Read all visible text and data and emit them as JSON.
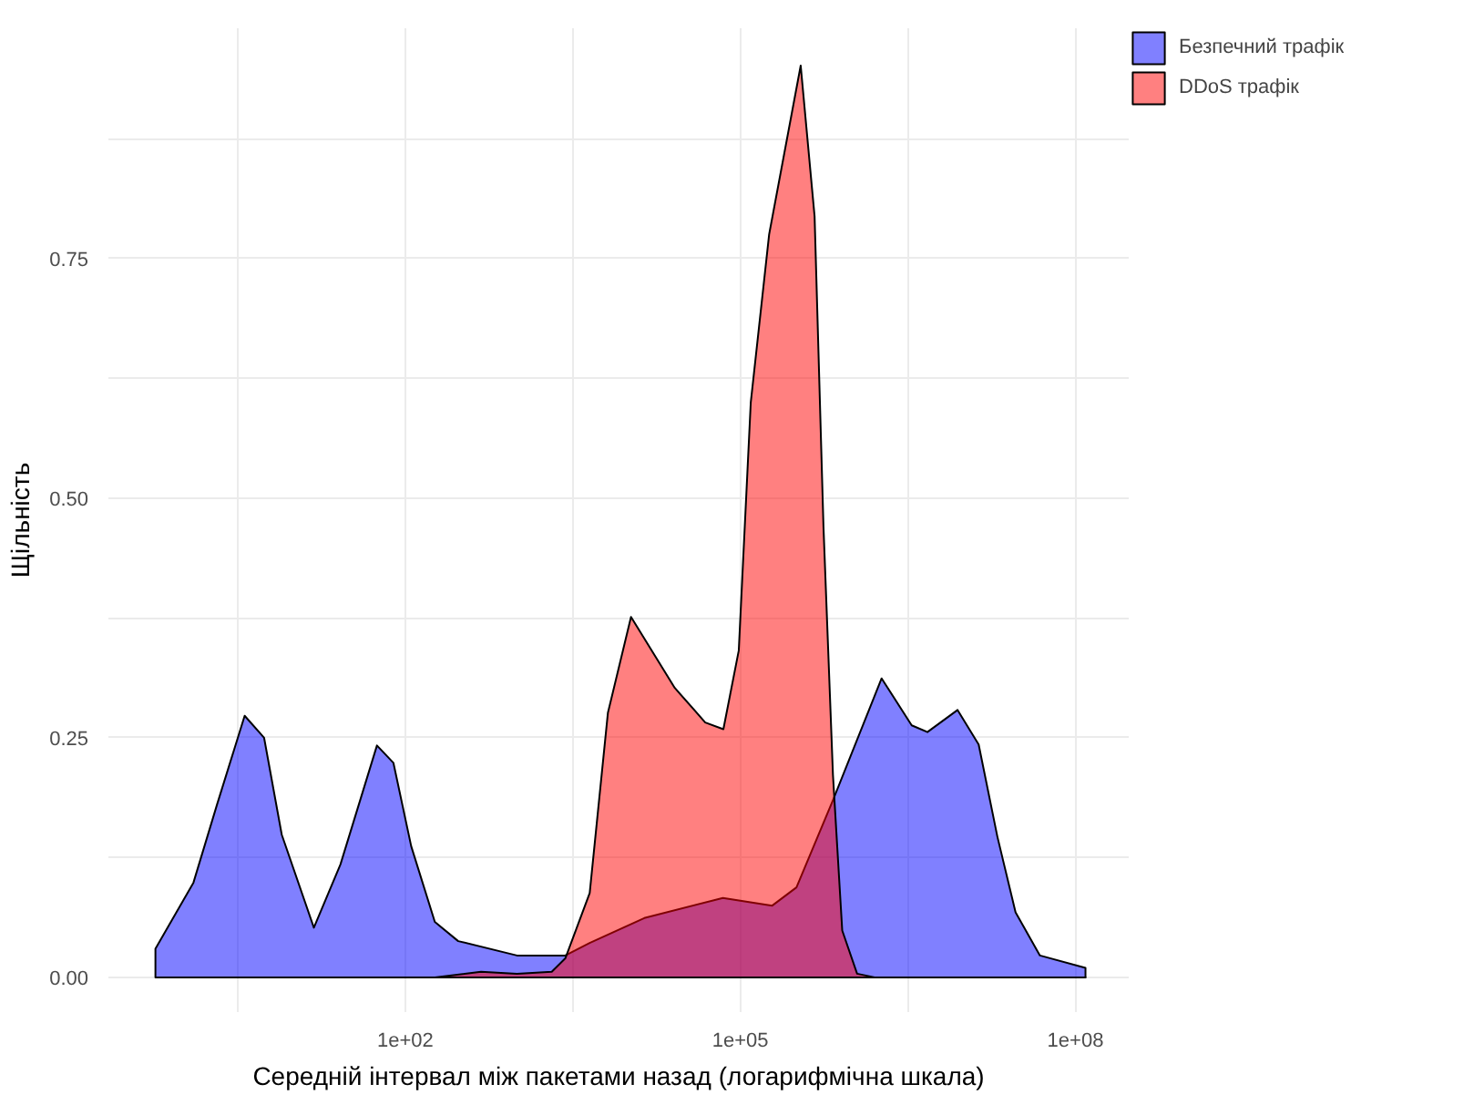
{
  "chart_data": {
    "type": "area",
    "xlabel": "Середній інтервал між пакетами назад (логарифмічна шкала)",
    "ylabel": "Щільність",
    "log": "x",
    "grid": true,
    "legend": "right",
    "line_style": "solid",
    "xlim": [
      0.22,
      300000000.0
    ],
    "ylim": [
      -0.036,
      0.99
    ],
    "xticks": [
      {
        "value": 3.16,
        "label": null
      },
      {
        "value": 100,
        "label": "1e+02"
      },
      {
        "value": 3160,
        "label": null
      },
      {
        "value": 100000,
        "label": "1e+05"
      },
      {
        "value": 3160000,
        "label": null
      },
      {
        "value": 100000000,
        "label": "1e+08"
      }
    ],
    "yticks": [
      {
        "value": 0,
        "label": "0.00"
      },
      {
        "value": 0.125,
        "label": null
      },
      0.25,
      {
        "value": 0.375,
        "label": null
      },
      {
        "value": 0.5,
        "label": "0.50"
      },
      {
        "value": 0.625,
        "label": null
      },
      0.75,
      {
        "value": 0.875,
        "label": null
      }
    ],
    "series": [
      {
        "name": "Безпечний трафік",
        "color": "#8080ff",
        "x": [
          0.58,
          1.27,
          2.06,
          3.65,
          5.45,
          7.84,
          15.2,
          26.3,
          55.8,
          78.3,
          113,
          184,
          298,
          1000,
          2710,
          4480,
          13800,
          69800,
          193000,
          318000,
          675000,
          1840000,
          3420000,
          4730000,
          8810000,
          13600000,
          20000000,
          29100000,
          48100000,
          123000000
        ],
        "values": [
          0.03,
          0.099,
          0.18,
          0.273,
          0.25,
          0.149,
          0.052,
          0.118,
          0.242,
          0.224,
          0.137,
          0.058,
          0.038,
          0.023,
          0.023,
          0.036,
          0.062,
          0.083,
          0.075,
          0.094,
          0.185,
          0.312,
          0.263,
          0.256,
          0.279,
          0.243,
          0.147,
          0.068,
          0.023,
          0.01
        ]
      },
      {
        "name": "DDoS трафік",
        "color": "#ff8080",
        "x": [
          184,
          477,
          1000,
          2050,
          2710,
          4480,
          6520,
          10500,
          25900,
          48500,
          70500,
          96800,
          124000,
          181000,
          347000,
          462000,
          555000,
          675000,
          817000,
          1110000,
          1630000,
          123000000
        ],
        "values": [
          0,
          0.006,
          0.004,
          0.006,
          0.02,
          0.088,
          0.276,
          0.376,
          0.302,
          0.266,
          0.259,
          0.341,
          0.6,
          0.775,
          0.951,
          0.794,
          0.47,
          0.211,
          0.049,
          0.004,
          0,
          0
        ]
      }
    ]
  }
}
